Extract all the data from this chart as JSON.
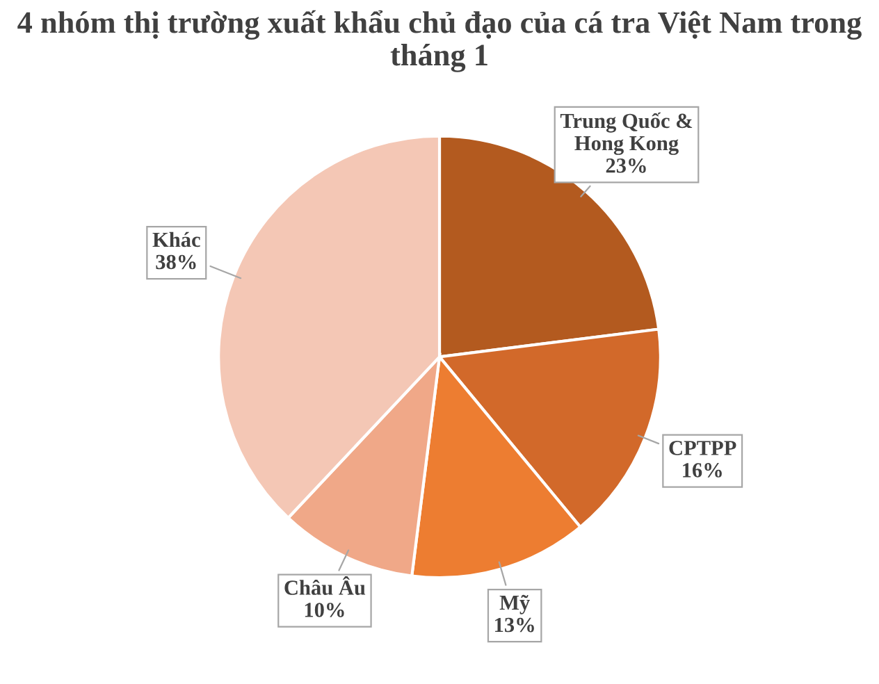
{
  "chart_data": {
    "type": "pie",
    "title": "4 nhóm thị trường xuất khẩu chủ đạo của cá tra Việt Nam trong tháng 1",
    "categories": [
      "Trung Quốc &\nHong Kong",
      "CPTPP",
      "Mỹ",
      "Châu Âu",
      "Khác"
    ],
    "values": [
      23,
      16,
      13,
      10,
      38
    ],
    "colors": [
      "#b35a1f",
      "#d2692a",
      "#ed7d31",
      "#f0a888",
      "#f4c7b5"
    ],
    "value_labels": [
      "23%",
      "16%",
      "13%",
      "10%",
      "38%"
    ],
    "legend": false
  }
}
